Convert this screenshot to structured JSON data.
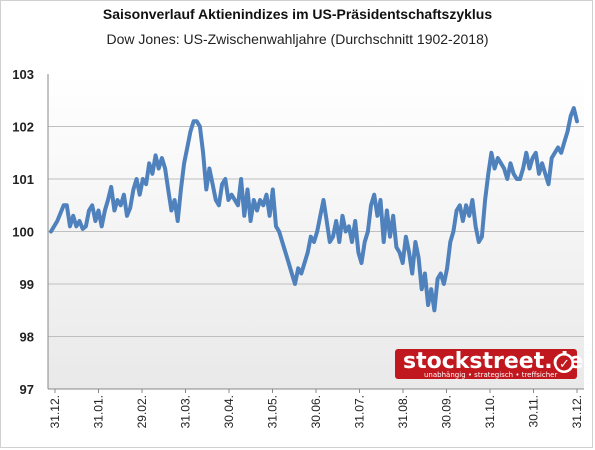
{
  "chart_data": {
    "type": "line",
    "title": "Saisonverlauf Aktienindizes im US-Präsidentschaftszyklus",
    "subtitle": "Dow Jones: US-Zwischenwahljahre (Durchschnitt 1902-2018)",
    "ylim": [
      97,
      103
    ],
    "yticks": [
      "97",
      "98",
      "99",
      "100",
      "101",
      "102",
      "103"
    ],
    "x_tick_labels": [
      "31.12.",
      "31.01.",
      "29.02.",
      "31.03.",
      "30.04.",
      "31.05.",
      "30.06.",
      "31.07.",
      "31.08.",
      "30.09.",
      "31.10.",
      "30.11.",
      "31.12."
    ],
    "grid": "horizontal",
    "line_color": "#4f81bd",
    "series": [
      {
        "values": [
          [
            0,
            100
          ],
          [
            2,
            100.2
          ],
          [
            4,
            100.5
          ],
          [
            5,
            100.5
          ],
          [
            6,
            100.1
          ],
          [
            7,
            100.3
          ],
          [
            8,
            100.1
          ],
          [
            9,
            100.2
          ],
          [
            10,
            100.05
          ],
          [
            11,
            100.1
          ],
          [
            12,
            100.4
          ],
          [
            13,
            100.5
          ],
          [
            14,
            100.2
          ],
          [
            15,
            100.4
          ],
          [
            16,
            100.1
          ],
          [
            17,
            100.4
          ],
          [
            18,
            100.6
          ],
          [
            19,
            100.85
          ],
          [
            20,
            100.4
          ],
          [
            21,
            100.6
          ],
          [
            22,
            100.5
          ],
          [
            23,
            100.7
          ],
          [
            24,
            100.3
          ],
          [
            25,
            100.45
          ],
          [
            26,
            100.8
          ],
          [
            27,
            101
          ],
          [
            28,
            100.7
          ],
          [
            29,
            101
          ],
          [
            30,
            100.9
          ],
          [
            31,
            101.3
          ],
          [
            32,
            101.1
          ],
          [
            33,
            101.45
          ],
          [
            34,
            101.2
          ],
          [
            35,
            101.4
          ],
          [
            36,
            101.2
          ],
          [
            37,
            100.8
          ],
          [
            38,
            100.4
          ],
          [
            39,
            100.6
          ],
          [
            40,
            100.2
          ],
          [
            41,
            100.8
          ],
          [
            42,
            101.3
          ],
          [
            43,
            101.6
          ],
          [
            44,
            101.9
          ],
          [
            45,
            102.1
          ],
          [
            46,
            102.1
          ],
          [
            47,
            102
          ],
          [
            48,
            101.5
          ],
          [
            49,
            100.8
          ],
          [
            50,
            101.2
          ],
          [
            51,
            100.9
          ],
          [
            52,
            100.6
          ],
          [
            53,
            100.5
          ],
          [
            54,
            100.9
          ],
          [
            55,
            101
          ],
          [
            56,
            100.6
          ],
          [
            57,
            100.7
          ],
          [
            58,
            100.6
          ],
          [
            59,
            100.5
          ],
          [
            60,
            101
          ],
          [
            61,
            100.3
          ],
          [
            62,
            100.8
          ],
          [
            63,
            100.2
          ],
          [
            64,
            100.6
          ],
          [
            65,
            100.4
          ],
          [
            66,
            100.6
          ],
          [
            67,
            100.5
          ],
          [
            68,
            100.7
          ],
          [
            69,
            100.3
          ],
          [
            70,
            100.8
          ],
          [
            71,
            100.1
          ],
          [
            72,
            100
          ],
          [
            73,
            99.8
          ],
          [
            74,
            99.6
          ],
          [
            75,
            99.4
          ],
          [
            76,
            99.2
          ],
          [
            77,
            99
          ],
          [
            78,
            99.3
          ],
          [
            79,
            99.2
          ],
          [
            80,
            99.4
          ],
          [
            81,
            99.6
          ],
          [
            82,
            99.9
          ],
          [
            83,
            99.8
          ],
          [
            84,
            100
          ],
          [
            85,
            100.3
          ],
          [
            86,
            100.6
          ],
          [
            87,
            100.2
          ],
          [
            88,
            99.8
          ],
          [
            89,
            99.9
          ],
          [
            90,
            100.2
          ],
          [
            91,
            99.8
          ],
          [
            92,
            100.3
          ],
          [
            93,
            100
          ],
          [
            94,
            100.1
          ],
          [
            95,
            99.8
          ],
          [
            96,
            100.2
          ],
          [
            97,
            99.6
          ],
          [
            98,
            99.4
          ],
          [
            99,
            99.8
          ],
          [
            100,
            100
          ],
          [
            101,
            100.5
          ],
          [
            102,
            100.7
          ],
          [
            103,
            100.3
          ],
          [
            104,
            100.6
          ],
          [
            105,
            99.8
          ],
          [
            106,
            100.4
          ],
          [
            107,
            99.9
          ],
          [
            108,
            100.3
          ],
          [
            109,
            99.7
          ],
          [
            110,
            99.6
          ],
          [
            111,
            99.4
          ],
          [
            112,
            99.9
          ],
          [
            113,
            99.6
          ],
          [
            114,
            99.2
          ],
          [
            115,
            99.8
          ],
          [
            116,
            99.5
          ],
          [
            117,
            98.9
          ],
          [
            118,
            99.2
          ],
          [
            119,
            98.6
          ],
          [
            120,
            98.9
          ],
          [
            121,
            98.5
          ],
          [
            122,
            99.1
          ],
          [
            123,
            99.2
          ],
          [
            124,
            99
          ],
          [
            125,
            99.3
          ],
          [
            126,
            99.8
          ],
          [
            127,
            100
          ],
          [
            128,
            100.4
          ],
          [
            129,
            100.5
          ],
          [
            130,
            100.2
          ],
          [
            131,
            100.5
          ],
          [
            132,
            100.3
          ],
          [
            133,
            100.6
          ],
          [
            134,
            100.1
          ],
          [
            135,
            99.8
          ],
          [
            136,
            99.9
          ],
          [
            137,
            100.6
          ],
          [
            138,
            101.1
          ],
          [
            139,
            101.5
          ],
          [
            140,
            101.2
          ],
          [
            141,
            101.4
          ],
          [
            142,
            101.3
          ],
          [
            143,
            101.2
          ],
          [
            144,
            101
          ],
          [
            145,
            101.3
          ],
          [
            146,
            101.1
          ],
          [
            147,
            101
          ],
          [
            148,
            101
          ],
          [
            149,
            101.2
          ],
          [
            150,
            101.5
          ],
          [
            151,
            101.2
          ],
          [
            152,
            101.4
          ],
          [
            153,
            101.5
          ],
          [
            154,
            101.1
          ],
          [
            155,
            101.3
          ],
          [
            156,
            101.1
          ],
          [
            157,
            100.9
          ],
          [
            158,
            101.4
          ],
          [
            159,
            101.5
          ],
          [
            160,
            101.6
          ],
          [
            161,
            101.5
          ],
          [
            162,
            101.7
          ],
          [
            163,
            101.9
          ],
          [
            164,
            102.2
          ],
          [
            165,
            102.35
          ],
          [
            166,
            102.1
          ]
        ]
      }
    ],
    "watermark": {
      "brand": "stockstreet.de",
      "tagline": "unabhängig • strategisch • treffsicher",
      "check": "✓"
    }
  }
}
